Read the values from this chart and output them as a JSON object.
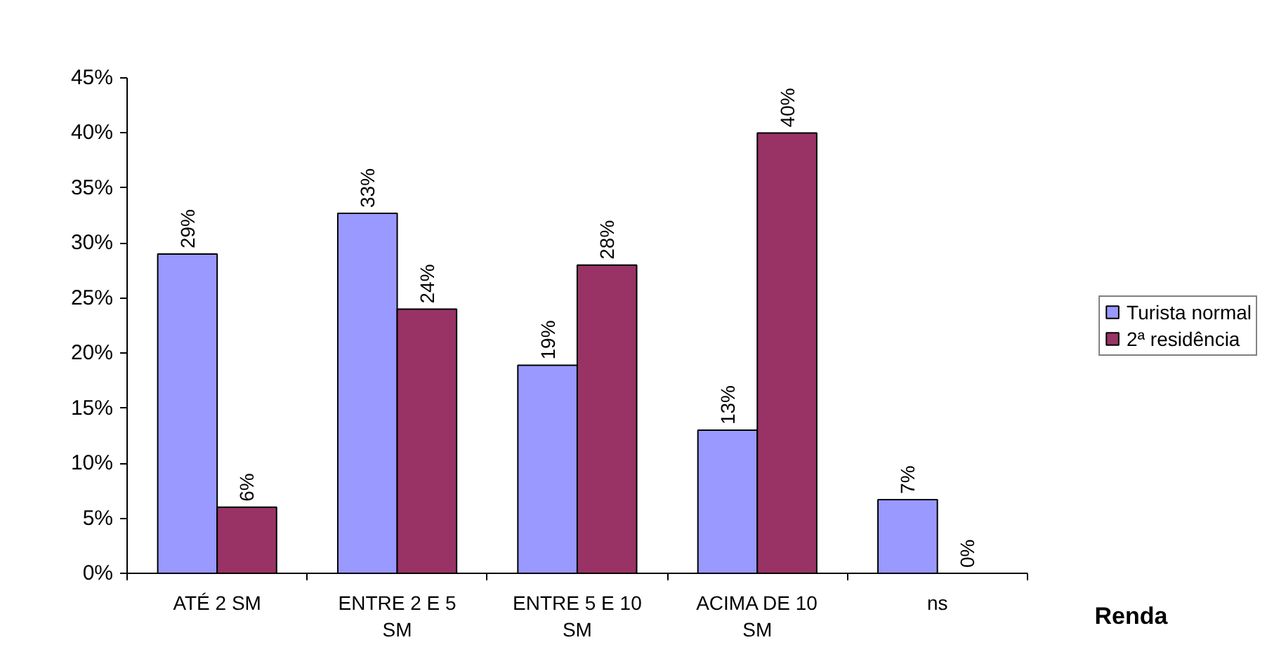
{
  "chart_data": {
    "type": "bar",
    "xlabel": "Renda",
    "categories": [
      "ATÉ 2 SM",
      "ENTRE 2 E 5 SM",
      "ENTRE 5 E 10 SM",
      "ACIMA DE 10 SM",
      "ns"
    ],
    "series": [
      {
        "name": "Turista normal",
        "color": "#9999ff",
        "values": [
          29,
          32.7,
          18.9,
          13,
          6.7
        ],
        "value_labels": [
          "29%",
          "33%",
          "19%",
          "13%",
          "7%"
        ]
      },
      {
        "name": "2ª residência",
        "color": "#993366",
        "values": [
          6,
          24,
          28,
          40,
          0
        ],
        "value_labels": [
          "6%",
          "24%",
          "28%",
          "40%",
          "0%"
        ]
      }
    ],
    "ylim": [
      0,
      45
    ],
    "yticks": [
      {
        "value": 0,
        "label": "0%"
      },
      {
        "value": 5,
        "label": "5%"
      },
      {
        "value": 10,
        "label": "10%"
      },
      {
        "value": 15,
        "label": "15%"
      },
      {
        "value": 20,
        "label": "20%"
      },
      {
        "value": 25,
        "label": "25%"
      },
      {
        "value": 30,
        "label": "30%"
      },
      {
        "value": 35,
        "label": "35%"
      },
      {
        "value": 40,
        "label": "40%"
      },
      {
        "value": 45,
        "label": "45%"
      }
    ],
    "legend": "right",
    "grid": false
  }
}
